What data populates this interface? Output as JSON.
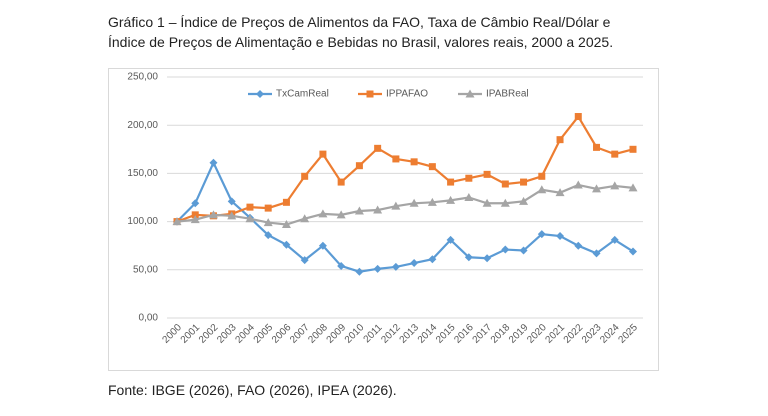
{
  "chart_data": {
    "type": "line",
    "title_lines": [
      "Gráfico 1 – Índice de Preços de Alimentos da FAO, Taxa de Câmbio Real/Dólar e",
      "Índice de Preços de Alimentação e Bebidas no Brasil, valores reais, 2000 a 2025."
    ],
    "source": "Fonte: IBGE (2026), FAO (2026), IPEA (2026).",
    "categories": [
      "2000",
      "2001",
      "2002",
      "2003",
      "2004",
      "2005",
      "2006",
      "2007",
      "2008",
      "2009",
      "2010",
      "2011",
      "2012",
      "2013",
      "2014",
      "2015",
      "2016",
      "2017",
      "2018",
      "2019",
      "2020",
      "2021",
      "2022",
      "2023",
      "2024",
      "2025"
    ],
    "series": [
      {
        "name": "TxCamReal",
        "color": "#5b9bd5",
        "marker": "diamond",
        "values": [
          100,
          119,
          161,
          121,
          104,
          86,
          76,
          60,
          75,
          54,
          48,
          51,
          53,
          57,
          61,
          81,
          63,
          62,
          71,
          70,
          87,
          85,
          75,
          67,
          81,
          69
        ]
      },
      {
        "name": "IPPAFAO",
        "color": "#ed7d31",
        "marker": "square",
        "values": [
          100,
          107,
          106,
          108,
          115,
          114,
          120,
          147,
          170,
          141,
          158,
          176,
          165,
          162,
          157,
          141,
          145,
          149,
          139,
          141,
          147,
          185,
          209,
          177,
          170,
          175
        ]
      },
      {
        "name": "IPABReal",
        "color": "#a5a5a5",
        "marker": "triangle",
        "values": [
          100,
          102,
          107,
          106,
          103,
          99,
          97,
          103,
          108,
          107,
          111,
          112,
          116,
          119,
          120,
          122,
          125,
          119,
          119,
          121,
          133,
          130,
          138,
          134,
          137,
          135
        ]
      }
    ],
    "ylim": [
      0,
      250
    ],
    "yticks": [
      {
        "value": 0,
        "label": "0,00"
      },
      {
        "value": 50,
        "label": "50,00"
      },
      {
        "value": 100,
        "label": "100,00"
      },
      {
        "value": 150,
        "label": "150,00"
      },
      {
        "value": 200,
        "label": "200,00"
      },
      {
        "value": 250,
        "label": "250,00"
      }
    ],
    "grid": true,
    "legend": "top"
  }
}
